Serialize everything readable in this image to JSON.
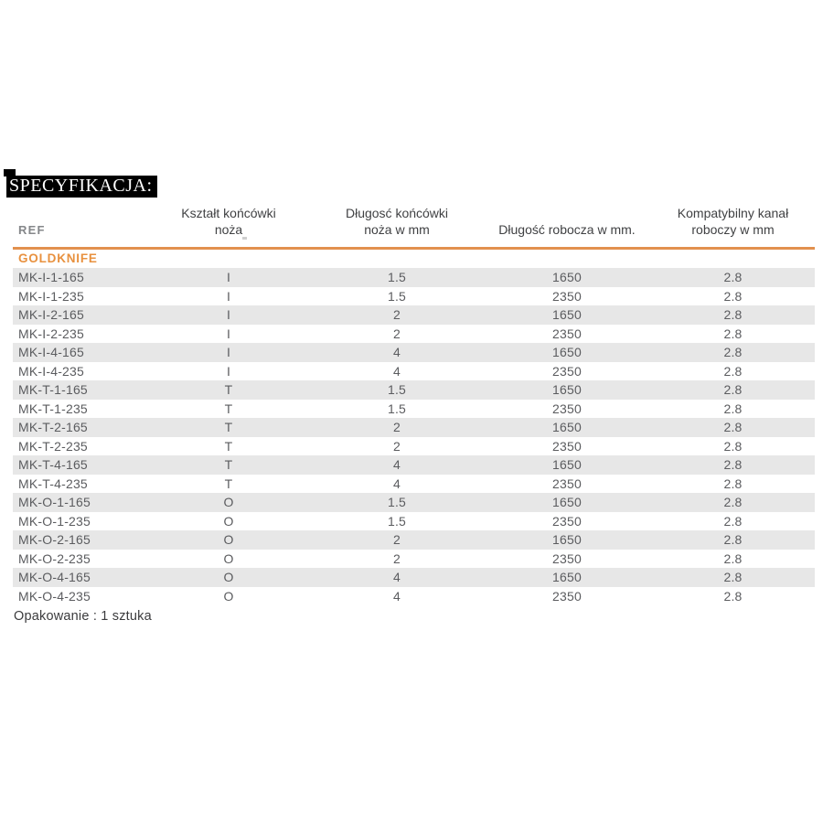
{
  "page": {
    "title": "SPECYFIKACJA:",
    "packaging_note": "Opakowanie : 1 sztuka"
  },
  "table": {
    "brand": "GOLDKNIFE",
    "columns": [
      {
        "label": "REF"
      },
      {
        "label": "Kształt końcówki\nnoża"
      },
      {
        "label": "Długosć końcówki\nnoża w mm"
      },
      {
        "label": "Długość robocza w mm."
      },
      {
        "label": "Kompatybilny kanał\nroboczy w mm"
      }
    ],
    "rows": [
      [
        "MK-I-1-165",
        "I",
        "1.5",
        "1650",
        "2.8"
      ],
      [
        "MK-I-1-235",
        "I",
        "1.5",
        "2350",
        "2.8"
      ],
      [
        "MK-I-2-165",
        "I",
        "2",
        "1650",
        "2.8"
      ],
      [
        "MK-I-2-235",
        "I",
        "2",
        "2350",
        "2.8"
      ],
      [
        "MK-I-4-165",
        "I",
        "4",
        "1650",
        "2.8"
      ],
      [
        "MK-I-4-235",
        "I",
        "4",
        "2350",
        "2.8"
      ],
      [
        "MK-T-1-165",
        "T",
        "1.5",
        "1650",
        "2.8"
      ],
      [
        "MK-T-1-235",
        "T",
        "1.5",
        "2350",
        "2.8"
      ],
      [
        "MK-T-2-165",
        "T",
        "2",
        "1650",
        "2.8"
      ],
      [
        "MK-T-2-235",
        "T",
        "2",
        "2350",
        "2.8"
      ],
      [
        "MK-T-4-165",
        "T",
        "4",
        "1650",
        "2.8"
      ],
      [
        "MK-T-4-235",
        "T",
        "4",
        "2350",
        "2.8"
      ],
      [
        "MK-O-1-165",
        "O",
        "1.5",
        "1650",
        "2.8"
      ],
      [
        "MK-O-1-235",
        "O",
        "1.5",
        "2350",
        "2.8"
      ],
      [
        "MK-O-2-165",
        "O",
        "2",
        "1650",
        "2.8"
      ],
      [
        "MK-O-2-235",
        "O",
        "2",
        "2350",
        "2.8"
      ],
      [
        "MK-O-4-165",
        "O",
        "4",
        "1650",
        "2.8"
      ],
      [
        "MK-O-4-235",
        "O",
        "4",
        "2350",
        "2.8"
      ]
    ]
  },
  "colors": {
    "accent_line_orange": "#E2914E",
    "brand_orange": "#E8913F",
    "row_stripe_gray": "#E7E7E7",
    "data_text_gray": "#5B5C5F",
    "header_text_gray": "#404143",
    "ref_header_gray": "#85878A",
    "title_bg": "#000000",
    "title_text": "#FFFFFF"
  }
}
